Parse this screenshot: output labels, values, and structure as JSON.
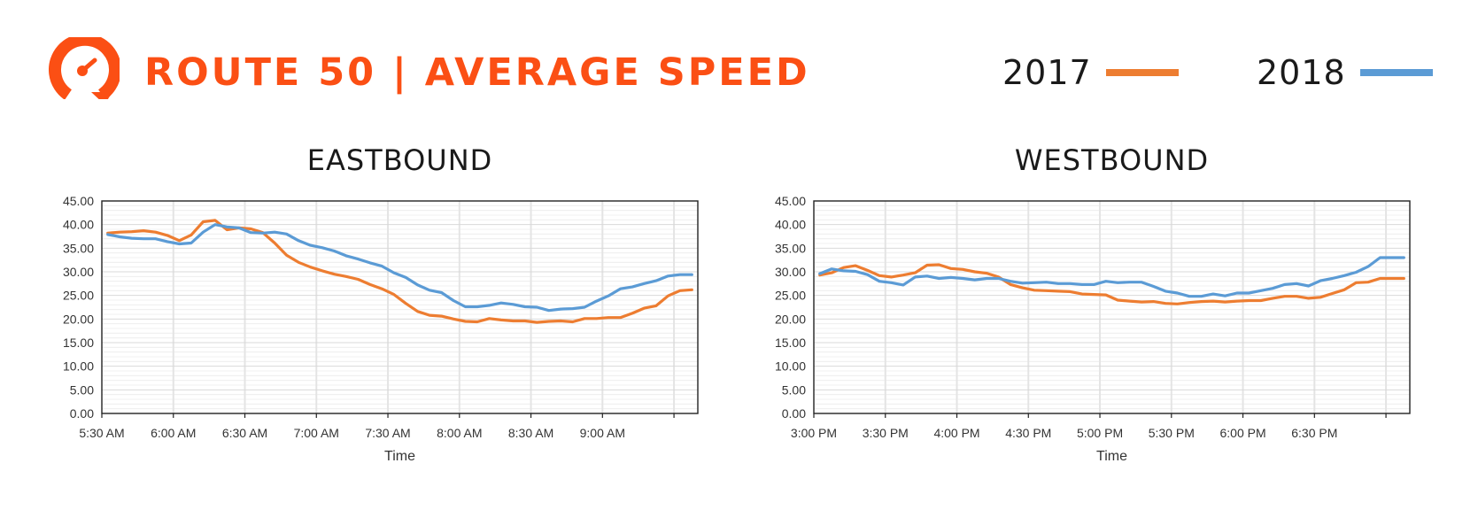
{
  "header": {
    "title": "ROUTE 50 | AVERAGE SPEED",
    "title_color": "#fb4f14",
    "logo_icon": "speedometer-icon"
  },
  "legend": [
    {
      "label": "2017",
      "color": "#ed7d31"
    },
    {
      "label": "2018",
      "color": "#5b9bd5"
    }
  ],
  "chart_data": [
    {
      "type": "line",
      "title": "EASTBOUND",
      "xlabel": "Time",
      "ylabel": "",
      "ylim": [
        0,
        45
      ],
      "yticks": [
        "0.00",
        "5.00",
        "10.00",
        "15.00",
        "20.00",
        "25.00",
        "30.00",
        "35.00",
        "40.00",
        "45.00"
      ],
      "tick_labels": [
        "5:30 AM",
        "6:00 AM",
        "6:30 AM",
        "7:00 AM",
        "7:30 AM",
        "8:00 AM",
        "8:30 AM",
        "9:00 AM"
      ],
      "grid": true,
      "x": [
        "5:30 AM",
        "5:35 AM",
        "5:40 AM",
        "5:45 AM",
        "5:50 AM",
        "5:55 AM",
        "6:00 AM",
        "6:05 AM",
        "6:10 AM",
        "6:15 AM",
        "6:20 AM",
        "6:25 AM",
        "6:30 AM",
        "6:35 AM",
        "6:40 AM",
        "6:45 AM",
        "6:50 AM",
        "6:55 AM",
        "7:00 AM",
        "7:05 AM",
        "7:10 AM",
        "7:15 AM",
        "7:20 AM",
        "7:25 AM",
        "7:30 AM",
        "7:35 AM",
        "7:40 AM",
        "7:45 AM",
        "7:50 AM",
        "7:55 AM",
        "8:00 AM",
        "8:05 AM",
        "8:10 AM",
        "8:15 AM",
        "8:20 AM",
        "8:25 AM",
        "8:30 AM",
        "8:35 AM",
        "8:40 AM",
        "8:45 AM",
        "8:50 AM",
        "8:55 AM",
        "9:00 AM",
        "9:05 AM",
        "9:10 AM",
        "9:15 AM",
        "9:20 AM",
        "9:25 AM",
        "9:30 AM",
        "9:35 AM"
      ],
      "series": [
        {
          "name": "2017",
          "color": "#ed7d31",
          "values": [
            38.2,
            38.4,
            38.5,
            38.7,
            38.4,
            37.7,
            36.6,
            37.8,
            40.6,
            40.9,
            38.9,
            39.3,
            39.1,
            38.3,
            36.1,
            33.5,
            32.0,
            31.0,
            30.2,
            29.5,
            29.0,
            28.4,
            27.3,
            26.4,
            25.2,
            23.3,
            21.6,
            20.8,
            20.6,
            20.0,
            19.5,
            19.4,
            20.1,
            19.8,
            19.6,
            19.6,
            19.3,
            19.5,
            19.6,
            19.4,
            20.1,
            20.1,
            20.3,
            20.3,
            21.2,
            22.3,
            22.8,
            24.9,
            26.0,
            26.2
          ]
        },
        {
          "name": "2018",
          "color": "#5b9bd5",
          "values": [
            37.9,
            37.4,
            37.1,
            37.0,
            37.0,
            36.4,
            35.9,
            36.1,
            38.4,
            40.0,
            39.5,
            39.3,
            38.3,
            38.2,
            38.4,
            38.0,
            36.6,
            35.6,
            35.1,
            34.4,
            33.4,
            32.7,
            31.9,
            31.2,
            29.8,
            28.8,
            27.2,
            26.1,
            25.6,
            23.9,
            22.6,
            22.6,
            22.9,
            23.4,
            23.1,
            22.6,
            22.5,
            21.8,
            22.1,
            22.2,
            22.5,
            23.8,
            24.9,
            26.4,
            26.8,
            27.5,
            28.1,
            29.1,
            29.4,
            29.4
          ]
        }
      ]
    },
    {
      "type": "line",
      "title": "WESTBOUND",
      "xlabel": "Time",
      "ylabel": "",
      "ylim": [
        0,
        45
      ],
      "yticks": [
        "0.00",
        "5.00",
        "10.00",
        "15.00",
        "20.00",
        "25.00",
        "30.00",
        "35.00",
        "40.00",
        "45.00"
      ],
      "tick_labels": [
        "3:00 PM",
        "3:30 PM",
        "4:00 PM",
        "4:30 PM",
        "5:00 PM",
        "5:30 PM",
        "6:00 PM",
        "6:30 PM"
      ],
      "grid": true,
      "x": [
        "3:00 PM",
        "3:05 PM",
        "3:10 PM",
        "3:15 PM",
        "3:20 PM",
        "3:25 PM",
        "3:30 PM",
        "3:35 PM",
        "3:40 PM",
        "3:45 PM",
        "3:50 PM",
        "3:55 PM",
        "4:00 PM",
        "4:05 PM",
        "4:10 PM",
        "4:15 PM",
        "4:20 PM",
        "4:25 PM",
        "4:30 PM",
        "4:35 PM",
        "4:40 PM",
        "4:45 PM",
        "4:50 PM",
        "4:55 PM",
        "5:00 PM",
        "5:05 PM",
        "5:10 PM",
        "5:15 PM",
        "5:20 PM",
        "5:25 PM",
        "5:30 PM",
        "5:35 PM",
        "5:40 PM",
        "5:45 PM",
        "5:50 PM",
        "5:55 PM",
        "6:00 PM",
        "6:05 PM",
        "6:10 PM",
        "6:15 PM",
        "6:20 PM",
        "6:25 PM",
        "6:30 PM",
        "6:35 PM",
        "6:40 PM",
        "6:45 PM",
        "6:50 PM",
        "6:55 PM",
        "7:00 PM",
        "7:05 PM"
      ],
      "series": [
        {
          "name": "2017",
          "color": "#ed7d31",
          "values": [
            29.3,
            29.8,
            30.9,
            31.3,
            30.3,
            29.2,
            28.9,
            29.3,
            29.8,
            31.4,
            31.5,
            30.7,
            30.5,
            30.0,
            29.7,
            28.9,
            27.3,
            26.6,
            26.1,
            26.0,
            25.9,
            25.8,
            25.3,
            25.2,
            25.1,
            24.0,
            23.8,
            23.6,
            23.7,
            23.3,
            23.2,
            23.5,
            23.7,
            23.8,
            23.6,
            23.8,
            23.9,
            23.9,
            24.4,
            24.8,
            24.8,
            24.4,
            24.6,
            25.4,
            26.2,
            27.7,
            27.8,
            28.6,
            28.6,
            28.6
          ]
        },
        {
          "name": "2018",
          "color": "#5b9bd5",
          "values": [
            29.6,
            30.6,
            30.2,
            30.1,
            29.4,
            28.0,
            27.7,
            27.2,
            28.9,
            29.1,
            28.6,
            28.8,
            28.6,
            28.3,
            28.6,
            28.6,
            28.0,
            27.6,
            27.7,
            27.8,
            27.5,
            27.5,
            27.3,
            27.3,
            28.0,
            27.7,
            27.8,
            27.8,
            26.9,
            25.9,
            25.5,
            24.8,
            24.8,
            25.3,
            24.9,
            25.5,
            25.5,
            26.0,
            26.5,
            27.3,
            27.5,
            27.0,
            28.1,
            28.6,
            29.2,
            29.9,
            31.1,
            33.0,
            33.0,
            33.0
          ]
        }
      ]
    }
  ]
}
